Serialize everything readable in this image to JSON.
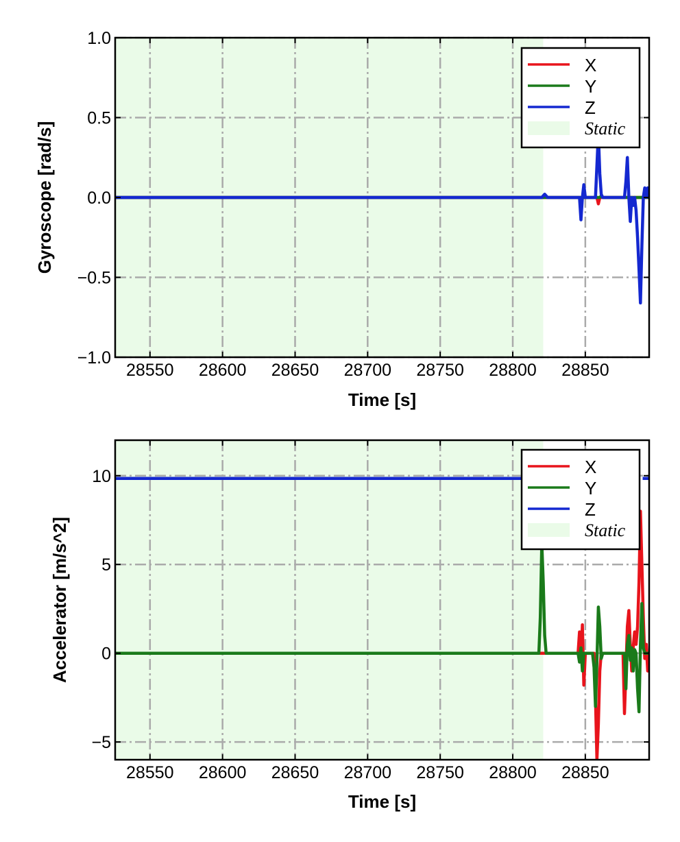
{
  "chart_data": [
    {
      "type": "line",
      "title": "",
      "xlabel": "Time [s]",
      "ylabel": "Gyroscope [rad/s]",
      "xlim": [
        28526,
        28894
      ],
      "ylim": [
        -1.0,
        1.0
      ],
      "xticks": [
        28550,
        28600,
        28650,
        28700,
        28750,
        28800,
        28850
      ],
      "xtick_labels": [
        "28550",
        "28600",
        "28650",
        "28700",
        "28750",
        "28800",
        "28850"
      ],
      "yticks": [
        1.0,
        0.5,
        0.0,
        -0.5,
        -1.0
      ],
      "ytick_labels": [
        "1.0",
        "0.5",
        "0.0",
        "−0.5",
        "−1.0"
      ],
      "grid": true,
      "legend_position": "top-right",
      "static_region": {
        "name": "Static",
        "x": [
          28526,
          28821
        ],
        "color": "#eafbe8"
      },
      "series": [
        {
          "name": "X",
          "color": "#e8141c",
          "x": [
            28526,
            28858,
            28859,
            28860,
            28861,
            28894
          ],
          "y": [
            0.0,
            0.0,
            -0.04,
            0.0,
            0.0,
            0.0
          ]
        },
        {
          "name": "Y",
          "color": "#1a7a1a",
          "x": [
            28526,
            28860,
            28861,
            28862,
            28894
          ],
          "y": [
            0.0,
            0.0,
            0.01,
            0.0,
            0.0
          ]
        },
        {
          "name": "Z",
          "color": "#1428d0",
          "x": [
            28526,
            28820,
            28822,
            28824,
            28846,
            28847,
            28848,
            28849,
            28850,
            28857,
            28858,
            28859,
            28860,
            28861,
            28862,
            28863,
            28877,
            28878,
            28879,
            28880,
            28881,
            28882,
            28883,
            28884,
            28885,
            28886,
            28887,
            28888,
            28889,
            28890,
            28891,
            28892,
            28893,
            28894
          ],
          "y": [
            0.0,
            0.0,
            0.02,
            0.0,
            0.0,
            -0.14,
            0.0,
            0.08,
            0.0,
            0.0,
            0.2,
            0.4,
            0.15,
            0.02,
            0.0,
            0.0,
            0.0,
            0.1,
            0.25,
            0.0,
            -0.15,
            0.0,
            -0.05,
            0.0,
            -0.08,
            -0.25,
            -0.45,
            -0.66,
            -0.3,
            0.0,
            0.06,
            0.0,
            0.06,
            0.0
          ]
        }
      ]
    },
    {
      "type": "line",
      "title": "",
      "xlabel": "Time [s]",
      "ylabel": "Accelerator [m/s^2]",
      "xlim": [
        28526,
        28894
      ],
      "ylim": [
        -6,
        12
      ],
      "xticks": [
        28550,
        28600,
        28650,
        28700,
        28750,
        28800,
        28850
      ],
      "xtick_labels": [
        "28550",
        "28600",
        "28650",
        "28700",
        "28750",
        "28800",
        "28850"
      ],
      "yticks": [
        10,
        5,
        0,
        -5
      ],
      "ytick_labels": [
        "10",
        "5",
        "0",
        "−5"
      ],
      "grid": true,
      "legend_position": "top-right",
      "static_region": {
        "name": "Static",
        "x": [
          28526,
          28821
        ],
        "color": "#eafbe8"
      },
      "series": [
        {
          "name": "X",
          "color": "#e8141c",
          "x": [
            28526,
            28820,
            28845,
            28846,
            28847,
            28848,
            28849,
            28850,
            28856,
            28857,
            28858,
            28859,
            28860,
            28861,
            28862,
            28876,
            28877,
            28878,
            28879,
            28880,
            28881,
            28882,
            28883,
            28884,
            28885,
            28886,
            28887,
            28888,
            28889,
            28890,
            28891,
            28892,
            28893,
            28894
          ],
          "y": [
            0.0,
            0.0,
            0.0,
            1.2,
            -0.5,
            1.6,
            -1.8,
            0.0,
            0.0,
            -2.5,
            -6.0,
            -4.0,
            -1.0,
            0.0,
            0.0,
            0.0,
            -3.4,
            -1.0,
            1.5,
            2.4,
            0.5,
            -1.0,
            0.3,
            1.2,
            0.5,
            1.5,
            4.0,
            8.0,
            5.0,
            2.0,
            -0.3,
            0.5,
            -1.0,
            0.0
          ]
        },
        {
          "name": "Y",
          "color": "#1a7a1a",
          "x": [
            28526,
            28818,
            28819,
            28820,
            28821,
            28822,
            28823,
            28824,
            28845,
            28846,
            28847,
            28848,
            28849,
            28855,
            28856,
            28857,
            28858,
            28859,
            28860,
            28861,
            28862,
            28863,
            28877,
            28878,
            28879,
            28880,
            28881,
            28882,
            28883,
            28884,
            28885,
            28886,
            28887,
            28888,
            28889,
            28890,
            28891,
            28894
          ],
          "y": [
            0.0,
            0.0,
            2.0,
            6.2,
            4.0,
            1.0,
            0.0,
            0.0,
            0.0,
            -0.5,
            0.3,
            -1.0,
            0.0,
            0.0,
            -0.8,
            -3.0,
            -0.5,
            2.6,
            1.5,
            -0.3,
            0.0,
            0.0,
            0.0,
            -2.0,
            0.5,
            1.0,
            -0.4,
            0.3,
            -1.0,
            0.2,
            0.0,
            -2.0,
            -3.3,
            0.5,
            2.8,
            0.3,
            0.0,
            0.0
          ]
        },
        {
          "name": "Z",
          "color": "#1428d0",
          "x": [
            28526,
            28820,
            28820.5,
            28889,
            28889.5,
            28894
          ],
          "y": [
            9.85,
            9.85,
            null,
            null,
            9.85,
            9.85
          ]
        }
      ]
    }
  ]
}
